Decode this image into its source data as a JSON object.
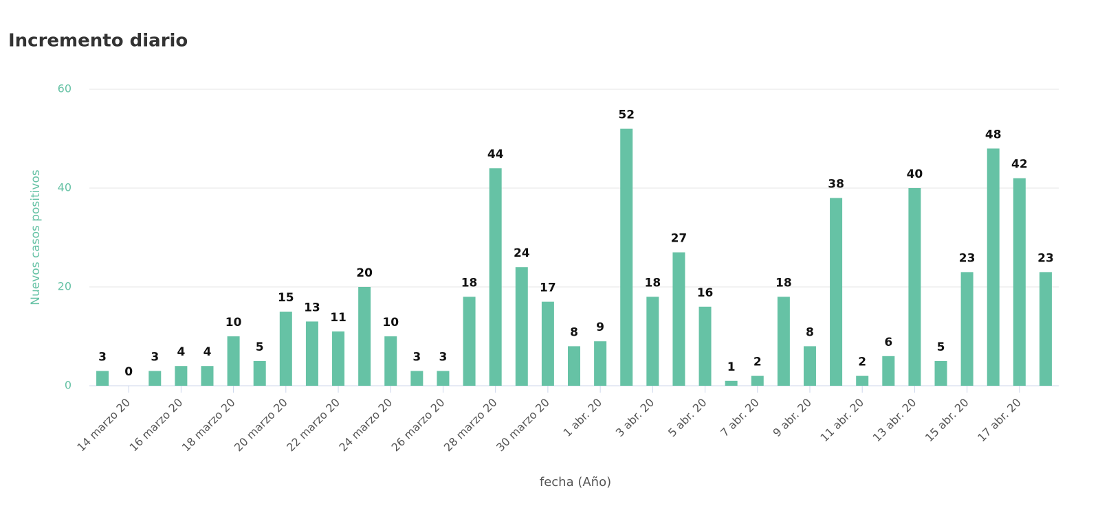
{
  "chart_data": {
    "type": "bar",
    "title": "Incremento diario",
    "x_label": "fecha (Año)",
    "y_label": "Nuevos casos positivos",
    "categories": [
      null,
      "14 marzo 20",
      null,
      "16 marzo 20",
      null,
      "18 marzo 20",
      null,
      "20 marzo 20",
      null,
      "22 marzo 20",
      null,
      "24 marzo 20",
      null,
      "26 marzo 20",
      null,
      "28 marzo 20",
      null,
      "30 marzo 20",
      null,
      "1 abr. 20",
      null,
      "3 abr. 20",
      null,
      "5 abr. 20",
      null,
      "7 abr. 20",
      null,
      "9 abr. 20",
      null,
      "11 abr. 20",
      null,
      "13 abr. 20",
      null,
      "15 abr. 20",
      null,
      "17 abr. 20",
      null
    ],
    "values": [
      3,
      0,
      3,
      4,
      4,
      10,
      5,
      15,
      13,
      11,
      20,
      10,
      3,
      3,
      18,
      44,
      24,
      17,
      8,
      9,
      52,
      18,
      27,
      16,
      1,
      2,
      18,
      8,
      38,
      2,
      6,
      40,
      5,
      23,
      48,
      42,
      23
    ],
    "color": "#66c2a5",
    "ylim": [
      0,
      60
    ],
    "yticks": [
      0,
      20,
      40,
      60
    ],
    "grid": true
  }
}
